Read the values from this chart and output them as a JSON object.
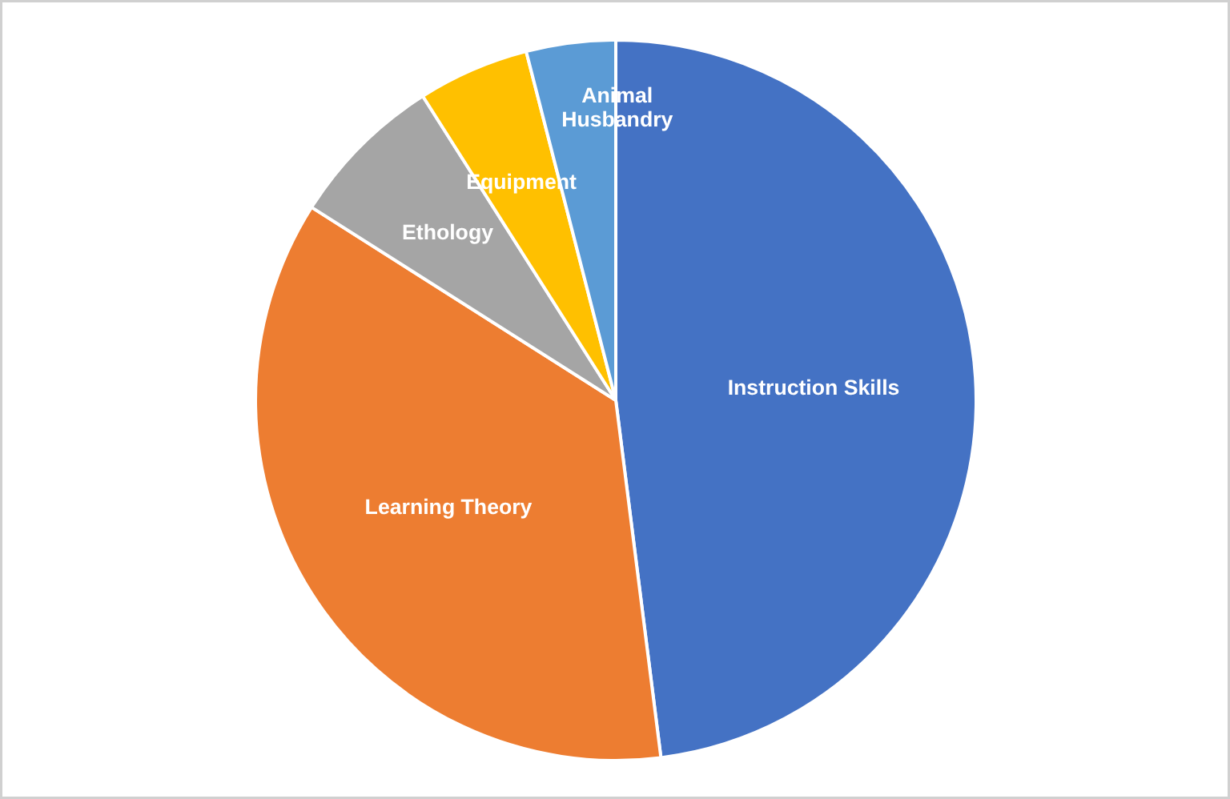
{
  "chart_data": {
    "type": "pie",
    "categories": [
      "Instruction Skills",
      "Learning Theory",
      "Ethology",
      "Equipment",
      "Animal Husbandry"
    ],
    "values": [
      48,
      36,
      7,
      5,
      4
    ],
    "colors": [
      "#4472c4",
      "#ed7d31",
      "#a5a5a5",
      "#ffc000",
      "#5b9bd5"
    ],
    "legend": false
  }
}
